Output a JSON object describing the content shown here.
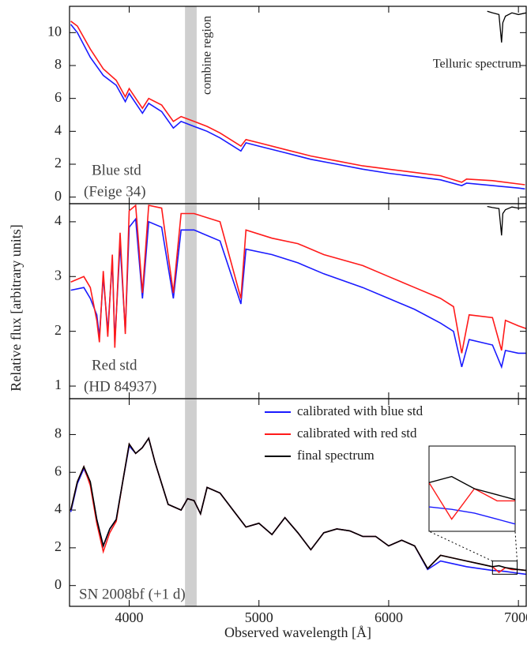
{
  "y_label": "Relative flux   [arbitrary units]",
  "x_label": "Observed wavelength   [Å]",
  "combine_region": {
    "label": "combine region",
    "range": [
      4430,
      4520
    ]
  },
  "chart_data": [
    {
      "type": "line",
      "xlim": [
        3540,
        7060
      ],
      "xticks": [
        4000,
        5000,
        6000,
        7000
      ],
      "ylim": [
        -0.4,
        11.6
      ],
      "yticks": [
        0,
        2,
        4,
        6,
        8,
        10
      ],
      "label": [
        "Blue std",
        "(Feige 34)"
      ],
      "x": [
        3550,
        3600,
        3700,
        3800,
        3900,
        3970,
        4000,
        4102,
        4150,
        4250,
        4340,
        4400,
        4500,
        4600,
        4700,
        4861,
        4900,
        5000,
        5200,
        5400,
        5600,
        5800,
        6000,
        6200,
        6400,
        6563,
        6600,
        6800,
        7000,
        7050
      ],
      "series": [
        {
          "color": "#1a1aff",
          "values": [
            10.5,
            10.0,
            8.5,
            7.4,
            6.8,
            5.8,
            6.3,
            5.1,
            5.7,
            5.2,
            4.2,
            4.6,
            4.3,
            4.0,
            3.6,
            2.8,
            3.3,
            3.1,
            2.7,
            2.3,
            2.0,
            1.7,
            1.45,
            1.25,
            1.05,
            0.7,
            0.85,
            0.7,
            0.55,
            0.5
          ]
        },
        {
          "color": "#ff1a1a",
          "values": [
            10.7,
            10.4,
            9.0,
            7.8,
            7.1,
            6.1,
            6.6,
            5.4,
            6.0,
            5.6,
            4.6,
            4.9,
            4.6,
            4.3,
            3.9,
            3.1,
            3.5,
            3.3,
            2.9,
            2.5,
            2.2,
            1.9,
            1.7,
            1.5,
            1.3,
            0.9,
            1.1,
            1.0,
            0.8,
            0.75
          ]
        }
      ],
      "telluric": {
        "label": "Telluric spectrum",
        "x": [
          6760,
          6800,
          6850,
          6870,
          6880,
          6900,
          6950,
          7000,
          7060
        ],
        "values": [
          11.3,
          11.2,
          11.1,
          9.4,
          10.6,
          11.0,
          11.2,
          11.1,
          11.2
        ]
      }
    },
    {
      "type": "line",
      "xlim": [
        3540,
        7060
      ],
      "xticks": [
        4000,
        5000,
        6000,
        7000
      ],
      "ylim": [
        0.77,
        4.33
      ],
      "yticks": [
        1,
        2,
        3,
        4
      ],
      "label": [
        "Red std",
        "(HD 84937)"
      ],
      "x": [
        3550,
        3650,
        3700,
        3750,
        3770,
        3800,
        3835,
        3870,
        3889,
        3930,
        3970,
        4000,
        4050,
        4102,
        4150,
        4250,
        4340,
        4400,
        4500,
        4700,
        4861,
        4900,
        5100,
        5300,
        5500,
        5800,
        6000,
        6200,
        6400,
        6500,
        6563,
        6620,
        6800,
        6870,
        6900,
        7000,
        7060
      ],
      "series": [
        {
          "color": "#1a1aff",
          "values": [
            2.75,
            2.8,
            2.6,
            2.3,
            1.9,
            3.0,
            2.0,
            3.3,
            1.8,
            3.6,
            2.0,
            3.9,
            4.05,
            2.6,
            4.0,
            3.9,
            2.6,
            3.85,
            3.85,
            3.65,
            2.5,
            3.5,
            3.4,
            3.25,
            3.05,
            2.8,
            2.6,
            2.4,
            2.15,
            2.0,
            1.35,
            1.85,
            1.75,
            1.35,
            1.65,
            1.6,
            1.6
          ]
        },
        {
          "color": "#ff1a1a",
          "values": [
            2.9,
            3.0,
            2.8,
            2.2,
            1.8,
            3.1,
            1.9,
            3.4,
            1.7,
            3.8,
            1.95,
            4.2,
            4.3,
            2.7,
            4.3,
            4.25,
            2.7,
            4.15,
            4.15,
            4.0,
            2.6,
            3.85,
            3.7,
            3.6,
            3.4,
            3.2,
            3.0,
            2.8,
            2.6,
            2.45,
            1.6,
            2.3,
            2.25,
            1.65,
            2.2,
            2.1,
            2.05
          ]
        }
      ],
      "telluric": {
        "x": [
          6760,
          6800,
          6850,
          6870,
          6880,
          6900,
          6950,
          7000,
          7060
        ],
        "values": [
          4.28,
          4.26,
          4.24,
          3.75,
          4.15,
          4.22,
          4.27,
          4.25,
          4.26
        ]
      }
    },
    {
      "type": "line",
      "xlim": [
        3540,
        7060
      ],
      "xticks": [
        4000,
        5000,
        6000,
        7000
      ],
      "ylim": [
        -1.1,
        9.9
      ],
      "yticks": [
        0,
        2,
        4,
        6,
        8
      ],
      "label": [
        "SN 2008bf (+1 d)"
      ],
      "inset": {
        "xlim": [
          6800,
          6990
        ],
        "ylim": [
          0.6,
          1.3
        ]
      },
      "x": [
        3550,
        3600,
        3650,
        3700,
        3750,
        3800,
        3850,
        3900,
        3950,
        4000,
        4050,
        4100,
        4150,
        4200,
        4300,
        4400,
        4450,
        4500,
        4550,
        4600,
        4700,
        4800,
        4900,
        5000,
        5100,
        5200,
        5300,
        5400,
        5500,
        5600,
        5700,
        5800,
        5900,
        6000,
        6100,
        6200,
        6300,
        6400,
        6500,
        6600,
        6700,
        6800,
        6850,
        6900,
        6950,
        7000,
        7060
      ],
      "series": [
        {
          "name": "calibrated with blue std",
          "color": "#1a1aff",
          "values": [
            3.9,
            5.4,
            6.2,
            5.4,
            3.5,
            2.1,
            3.0,
            3.5,
            5.5,
            7.4,
            7.0,
            7.3,
            7.8,
            6.5,
            4.3,
            4.0,
            4.6,
            4.5,
            3.8,
            5.2,
            4.9,
            4.0,
            3.1,
            3.3,
            2.7,
            3.6,
            2.8,
            1.9,
            2.8,
            3.0,
            2.9,
            2.6,
            2.6,
            2.1,
            2.4,
            2.1,
            0.85,
            1.3,
            1.15,
            1.0,
            0.9,
            0.8,
            0.78,
            0.75,
            0.7,
            0.65,
            0.6
          ]
        },
        {
          "name": "calibrated with red std",
          "color": "#ff1a1a",
          "values": [
            4.0,
            5.5,
            6.3,
            5.3,
            3.3,
            1.8,
            2.8,
            3.4,
            5.5,
            7.5,
            7.0,
            7.3,
            7.8,
            6.5,
            4.3,
            4.0,
            4.6,
            4.5,
            3.8,
            5.2,
            4.9,
            4.0,
            3.1,
            3.3,
            2.7,
            3.6,
            2.8,
            1.9,
            2.8,
            3.0,
            2.9,
            2.6,
            2.6,
            2.1,
            2.4,
            2.1,
            0.9,
            1.6,
            1.45,
            1.3,
            1.15,
            1.0,
            0.7,
            0.95,
            0.85,
            0.85,
            0.8
          ]
        },
        {
          "name": "final spectrum",
          "color": "#000000",
          "values": [
            4.0,
            5.5,
            6.3,
            5.5,
            3.5,
            2.1,
            3.0,
            3.5,
            5.5,
            7.5,
            7.0,
            7.3,
            7.8,
            6.5,
            4.3,
            4.0,
            4.6,
            4.5,
            3.8,
            5.2,
            4.9,
            4.0,
            3.1,
            3.3,
            2.7,
            3.6,
            2.8,
            1.9,
            2.8,
            3.0,
            2.9,
            2.6,
            2.6,
            2.1,
            2.4,
            2.1,
            0.9,
            1.6,
            1.45,
            1.3,
            1.15,
            1.0,
            1.05,
            0.95,
            0.9,
            0.85,
            0.8
          ]
        }
      ]
    }
  ]
}
